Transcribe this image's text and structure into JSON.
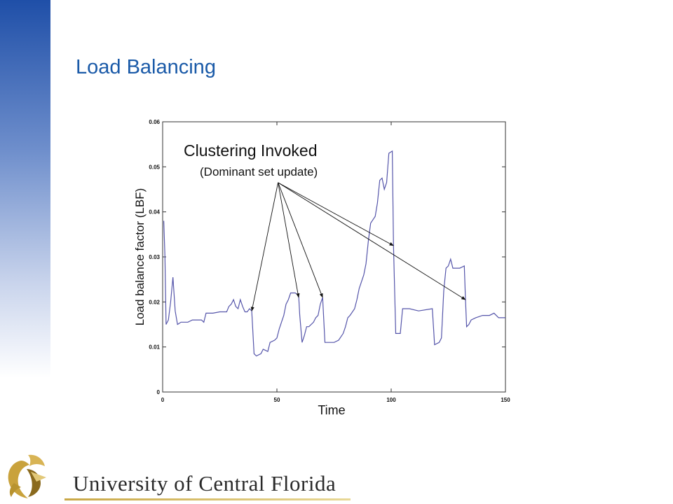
{
  "slide": {
    "title": "Load Balancing",
    "footer_text": "University of Central Florida",
    "accent_color": "#1f4fa8",
    "title_color": "#1a5aa8",
    "footer_icon": "pegasus-logo-icon"
  },
  "chart_data": {
    "type": "line",
    "title": "",
    "xlabel": "Time",
    "ylabel": "Load balance factor (LBF)",
    "xlim": [
      0,
      150
    ],
    "ylim": [
      0,
      0.06
    ],
    "xticks": [
      0,
      50,
      100,
      150
    ],
    "yticks": [
      0,
      0.01,
      0.02,
      0.03,
      0.04,
      0.05,
      0.06
    ],
    "xtick_labels": [
      "0",
      "50",
      "100",
      "150"
    ],
    "ytick_labels": [
      "0",
      "0.01",
      "0.02",
      "0.03",
      "0.04",
      "0.05",
      "0.06"
    ],
    "grid": false,
    "line_color": "#5555aa",
    "annotation": {
      "heading": "Clustering Invoked",
      "subheading": "(Dominant set update)",
      "source": [
        50.5,
        0.0465
      ],
      "targets": [
        [
          39,
          0.018
        ],
        [
          59.5,
          0.021
        ],
        [
          70,
          0.021
        ],
        [
          101,
          0.0325
        ],
        [
          132.5,
          0.0205
        ]
      ]
    },
    "series": [
      {
        "values": [
          [
            0.5,
            0.038
          ],
          [
            1,
            0.03
          ],
          [
            1.5,
            0.015
          ],
          [
            2.5,
            0.016
          ],
          [
            3.5,
            0.02
          ],
          [
            4.5,
            0.0255
          ],
          [
            5.5,
            0.018
          ],
          [
            6.5,
            0.015
          ],
          [
            8,
            0.0155
          ],
          [
            11,
            0.0155
          ],
          [
            13,
            0.016
          ],
          [
            17,
            0.016
          ],
          [
            18,
            0.0155
          ],
          [
            19,
            0.0175
          ],
          [
            22,
            0.0175
          ],
          [
            25,
            0.0178
          ],
          [
            28,
            0.0178
          ],
          [
            29,
            0.019
          ],
          [
            30,
            0.0195
          ],
          [
            31,
            0.0205
          ],
          [
            32,
            0.019
          ],
          [
            33,
            0.0185
          ],
          [
            34,
            0.0205
          ],
          [
            35,
            0.019
          ],
          [
            36,
            0.0178
          ],
          [
            37,
            0.0178
          ],
          [
            38,
            0.0185
          ],
          [
            39,
            0.018
          ],
          [
            40,
            0.0085
          ],
          [
            41,
            0.008
          ],
          [
            43,
            0.0085
          ],
          [
            44,
            0.0095
          ],
          [
            46,
            0.009
          ],
          [
            47,
            0.011
          ],
          [
            49,
            0.0115
          ],
          [
            50,
            0.012
          ],
          [
            51,
            0.014
          ],
          [
            52,
            0.0155
          ],
          [
            53,
            0.017
          ],
          [
            54,
            0.0195
          ],
          [
            55,
            0.0205
          ],
          [
            56,
            0.022
          ],
          [
            58,
            0.022
          ],
          [
            59.5,
            0.0215
          ],
          [
            60,
            0.017
          ],
          [
            61,
            0.011
          ],
          [
            62,
            0.0125
          ],
          [
            63,
            0.0145
          ],
          [
            64,
            0.0145
          ],
          [
            66,
            0.0155
          ],
          [
            67,
            0.0165
          ],
          [
            68,
            0.017
          ],
          [
            69,
            0.0195
          ],
          [
            70,
            0.021
          ],
          [
            71,
            0.011
          ],
          [
            75,
            0.011
          ],
          [
            77,
            0.0115
          ],
          [
            79,
            0.013
          ],
          [
            80,
            0.0145
          ],
          [
            81,
            0.0165
          ],
          [
            82,
            0.017
          ],
          [
            84,
            0.0185
          ],
          [
            85,
            0.0205
          ],
          [
            86,
            0.023
          ],
          [
            88,
            0.026
          ],
          [
            89,
            0.0285
          ],
          [
            90,
            0.0335
          ],
          [
            91,
            0.0375
          ],
          [
            93,
            0.039
          ],
          [
            94,
            0.042
          ],
          [
            95,
            0.047
          ],
          [
            96,
            0.0475
          ],
          [
            97,
            0.045
          ],
          [
            98,
            0.0465
          ],
          [
            99,
            0.053
          ],
          [
            100.5,
            0.0535
          ],
          [
            101,
            0.0325
          ],
          [
            102,
            0.013
          ],
          [
            104,
            0.013
          ],
          [
            105,
            0.0185
          ],
          [
            108,
            0.0185
          ],
          [
            112,
            0.018
          ],
          [
            118,
            0.0185
          ],
          [
            119,
            0.0105
          ],
          [
            121,
            0.011
          ],
          [
            122,
            0.012
          ],
          [
            123,
            0.0225
          ],
          [
            124,
            0.0275
          ],
          [
            125,
            0.028
          ],
          [
            126,
            0.0295
          ],
          [
            127,
            0.0275
          ],
          [
            130,
            0.0275
          ],
          [
            132,
            0.028
          ],
          [
            132.5,
            0.0205
          ],
          [
            133,
            0.0145
          ],
          [
            134,
            0.015
          ],
          [
            135,
            0.016
          ],
          [
            137,
            0.0165
          ],
          [
            140,
            0.017
          ],
          [
            143,
            0.017
          ],
          [
            145,
            0.0175
          ],
          [
            147,
            0.0165
          ],
          [
            150,
            0.0165
          ]
        ]
      }
    ]
  }
}
